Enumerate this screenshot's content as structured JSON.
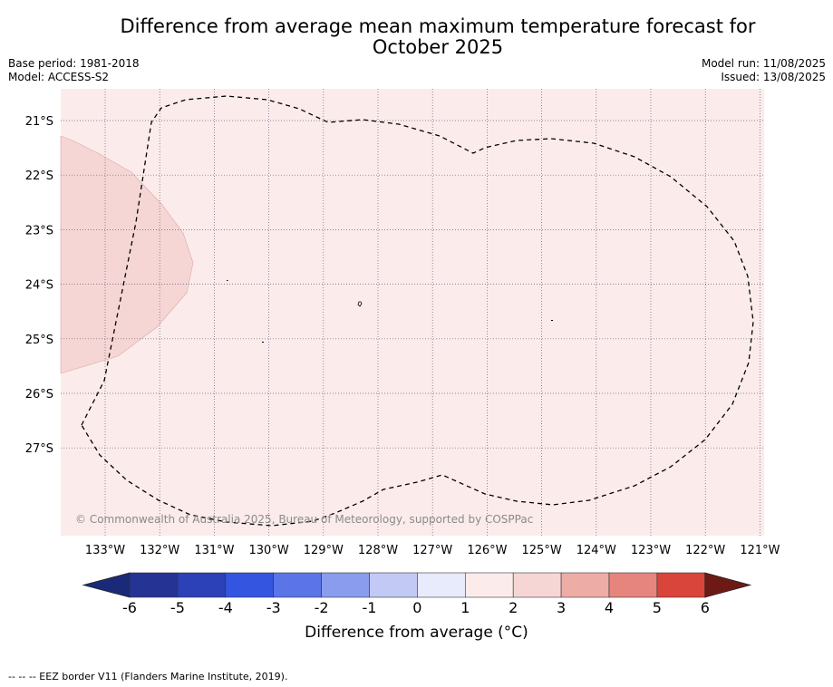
{
  "title_line1": "Difference from average mean maximum temperature forecast for",
  "title_line2": "October 2025",
  "left_meta": {
    "base_period": "Base period: 1981-2018",
    "model": "Model: ACCESS-S2"
  },
  "right_meta": {
    "model_run": "Model run: 11/08/2025",
    "issued": "Issued: 13/08/2025"
  },
  "copyright": "© Commonwealth of Australia 2025, Bureau of Meteorology, supported by COSPPac",
  "axes": {
    "lon_labels": [
      "133°W",
      "132°W",
      "131°W",
      "130°W",
      "129°W",
      "128°W",
      "127°W",
      "126°W",
      "125°W",
      "124°W",
      "123°W",
      "122°W",
      "121°W"
    ],
    "lat_labels": [
      "21°S",
      "22°S",
      "23°S",
      "24°S",
      "25°S",
      "26°S",
      "27°S"
    ]
  },
  "colorbar": {
    "label": "Difference from average (°C)",
    "ticks": [
      "-6",
      "-5",
      "-4",
      "-3",
      "-2",
      "-1",
      "0",
      "1",
      "2",
      "3",
      "4",
      "5",
      "6"
    ],
    "colors": [
      "#253494",
      "#2c40b8",
      "#3355e0",
      "#5b74e8",
      "#8a9ced",
      "#c2c9f5",
      "#e8ebfb",
      "#fbeceb",
      "#f5d6d4",
      "#eeaca7",
      "#e6857e",
      "#d9453b",
      "#a8251e"
    ],
    "under_color": "#1a2a78",
    "over_color": "#6e1a14"
  },
  "map_colors": {
    "background": "#fbeceb",
    "anomaly_patch": "#f5d6d4"
  },
  "footnote": "--  --  -- EEZ border V11 (Flanders Marine Institute, 2019)."
}
